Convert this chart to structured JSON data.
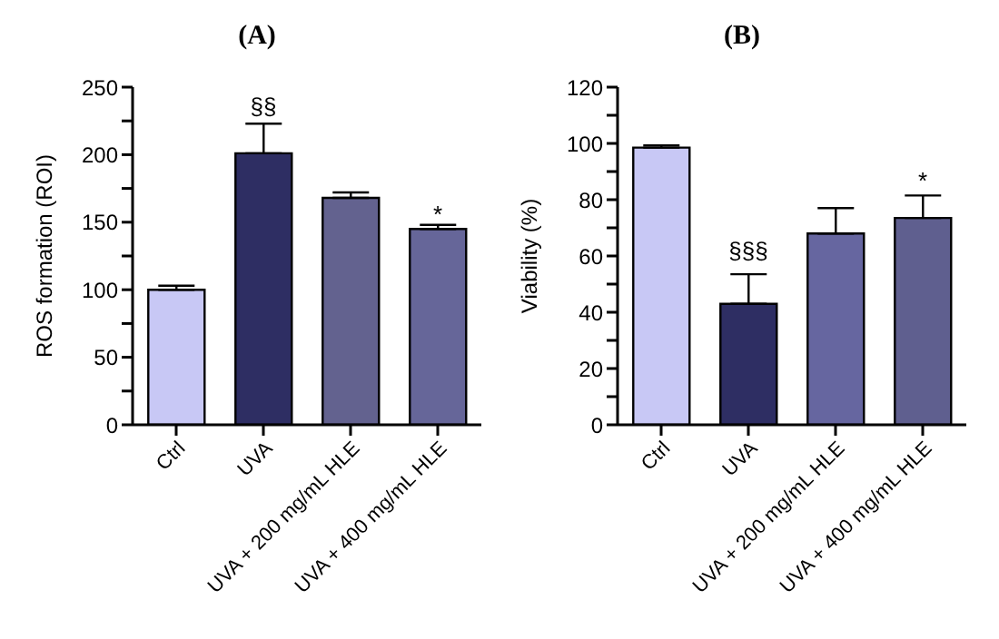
{
  "chart_data": [
    {
      "type": "bar",
      "title": "(A)",
      "ylabel": "ROS formation (ROI)",
      "categories": [
        "Ctrl",
        "UVA",
        "UVA + 200 mg/mL HLE",
        "UVA + 400 mg/mL HLE"
      ],
      "values": [
        100,
        201,
        168,
        145
      ],
      "colors": [
        "#c8c8f5",
        "#2e2e63",
        "#63628f",
        "#666699"
      ],
      "errors": [
        [
          100,
          103
        ],
        [
          201,
          223
        ],
        [
          168,
          172
        ],
        [
          145,
          148
        ]
      ],
      "ylim": [
        0,
        250
      ],
      "yticks": [
        0,
        {
          "value": 25,
          "label": null
        },
        50,
        {
          "value": 75,
          "label": null
        },
        100,
        {
          "value": 125,
          "label": null
        },
        150,
        {
          "value": 175,
          "label": null
        },
        200,
        {
          "value": 225,
          "label": null
        },
        250
      ],
      "grid": false,
      "legend": false,
      "annotations": [
        "§§",
        "*"
      ]
    },
    {
      "type": "bar",
      "title": "(B)",
      "ylabel": "Viability (%)",
      "categories": [
        "Ctrl",
        "UVA",
        "UVA + 200 mg/mL HLE",
        "UVA + 400 mg/mL HLE"
      ],
      "values": [
        98.5,
        43,
        68,
        73.5
      ],
      "colors": [
        "#c8c8f5",
        "#2e2e63",
        "#6666a0",
        "#5f5f8f"
      ],
      "errors": [
        [
          98.5,
          99.3
        ],
        [
          43,
          53.5
        ],
        [
          68,
          77
        ],
        [
          73.5,
          81.5
        ]
      ],
      "ylim": [
        0,
        120
      ],
      "yticks": [
        0,
        {
          "value": 10,
          "label": null
        },
        20,
        {
          "value": 30,
          "label": null
        },
        40,
        {
          "value": 50,
          "label": null
        },
        60,
        {
          "value": 70,
          "label": null
        },
        80,
        {
          "value": 90,
          "label": null
        },
        100,
        {
          "value": 110,
          "label": null
        },
        120
      ],
      "grid": false,
      "legend": false,
      "annotations": [
        "§§§",
        "*"
      ]
    }
  ]
}
